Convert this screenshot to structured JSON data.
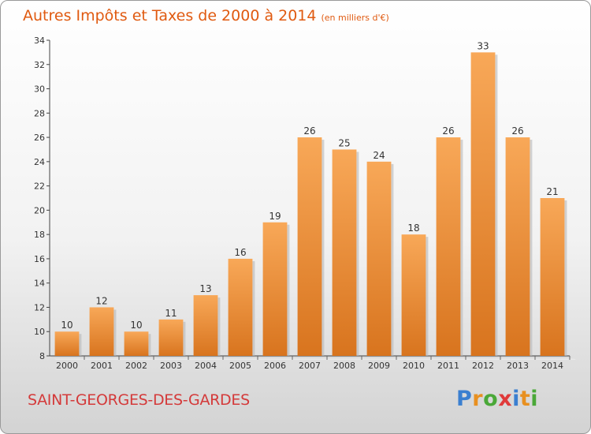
{
  "header": {
    "title": "Autres Impôts et Taxes de 2000 à 2014",
    "subtitle": "(en milliers d'€)"
  },
  "footer": {
    "commune": "SAINT-GEORGES-DES-GARDES",
    "logo_letters": [
      "P",
      "r",
      "o",
      "x",
      "i",
      "t",
      "i"
    ],
    "logo_colors": [
      "#3a7fd0",
      "#e89020",
      "#4aa838",
      "#e03a3a",
      "#3a7fd0",
      "#e89020",
      "#4aa838"
    ]
  },
  "colors": {
    "title": "#e05a10",
    "commune": "#d43a3a",
    "bar_top": "#f8a858",
    "bar_bottom": "#d8741e"
  },
  "chart_data": {
    "type": "bar",
    "categories": [
      "2000",
      "2001",
      "2002",
      "2003",
      "2004",
      "2005",
      "2006",
      "2007",
      "2008",
      "2009",
      "2010",
      "2011",
      "2012",
      "2013",
      "2014"
    ],
    "values": [
      10,
      12,
      10,
      11,
      13,
      16,
      19,
      26,
      25,
      24,
      18,
      26,
      33,
      26,
      21
    ],
    "ylim": [
      8,
      34
    ],
    "yticks": [
      8,
      10,
      12,
      14,
      16,
      18,
      20,
      22,
      24,
      26,
      28,
      30,
      32,
      34
    ],
    "grid": false,
    "data_labels": true
  }
}
